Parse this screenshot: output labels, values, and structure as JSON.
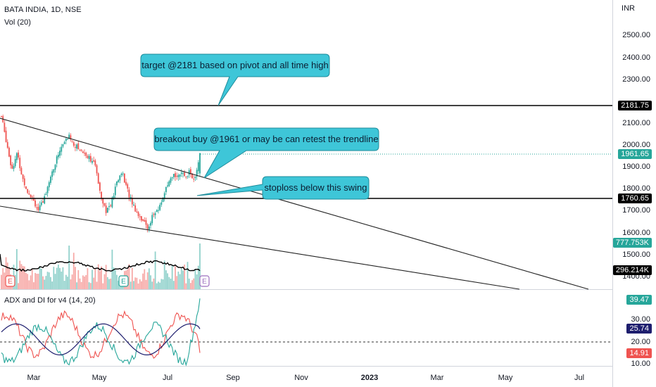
{
  "header": {
    "symbol_line": "BATA INDIA, 1D, NSE",
    "volume_line": "Vol (20)",
    "indicator_line": "ADX and DI for v4 (14, 20)",
    "currency": "INR"
  },
  "price_axis": {
    "ticks": [
      "2500.00",
      "2400.00",
      "2300.00",
      "2100.00",
      "2000.00",
      "1900.00",
      "1800.00",
      "1700.00",
      "1600.00",
      "1500.00",
      "1400.00"
    ],
    "tags": [
      {
        "text": "2181.75",
        "color": "#000000"
      },
      {
        "text": "1961.65",
        "color": "#26a69a"
      },
      {
        "text": "1760.65",
        "color": "#000000"
      },
      {
        "text": "777.753K",
        "color": "#26a69a"
      },
      {
        "text": "296.214K",
        "color": "#000000"
      }
    ]
  },
  "indicator_axis": {
    "ticks": [
      "30.00",
      "20.00",
      "10.00"
    ],
    "tags": [
      {
        "text": "39.47",
        "color": "#26a69a"
      },
      {
        "text": "25.74",
        "color": "#1e1e6e"
      },
      {
        "text": "14.91",
        "color": "#ef5350"
      }
    ]
  },
  "time_axis": [
    "Mar",
    "May",
    "Jul",
    "Sep",
    "Nov",
    "2023",
    "Mar",
    "May",
    "Jul"
  ],
  "annotations": {
    "target": "target @2181 based on pivot and all time high",
    "breakout": "breakout buy @1961 or may be can retest the trendline",
    "stoploss": "stoploss below this swing"
  },
  "colors": {
    "up": "#26a69a",
    "down": "#ef5350",
    "callout_fill": "#3ec6d8",
    "volume_ma": "#000000",
    "adx": "#1e1e6e"
  },
  "chart_data": {
    "type": "candlestick",
    "symbol": "BATA INDIA",
    "interval": "1D",
    "exchange": "NSE",
    "horizontal_levels": [
      2181.75,
      1760.65
    ],
    "last_price": 1961.65,
    "volume_last": "777.753K",
    "volume_ma_last": "296.214K",
    "adx_last": 25.74,
    "di_plus_last": 39.47,
    "di_minus_last": 14.91,
    "price_range": [
      1400,
      2550
    ],
    "indicator_range": [
      10,
      40
    ],
    "indicator_reference_level": 20,
    "close_path": [
      2130,
      2010,
      1890,
      1960,
      1850,
      1790,
      1760,
      1700,
      1740,
      1830,
      1890,
      1970,
      2010,
      2040,
      2000,
      1980,
      1960,
      1940,
      1900,
      1780,
      1700,
      1730,
      1820,
      1880,
      1800,
      1740,
      1690,
      1660,
      1620,
      1680,
      1700,
      1770,
      1820,
      1860,
      1870,
      1855,
      1880,
      1830,
      1961.65
    ]
  }
}
